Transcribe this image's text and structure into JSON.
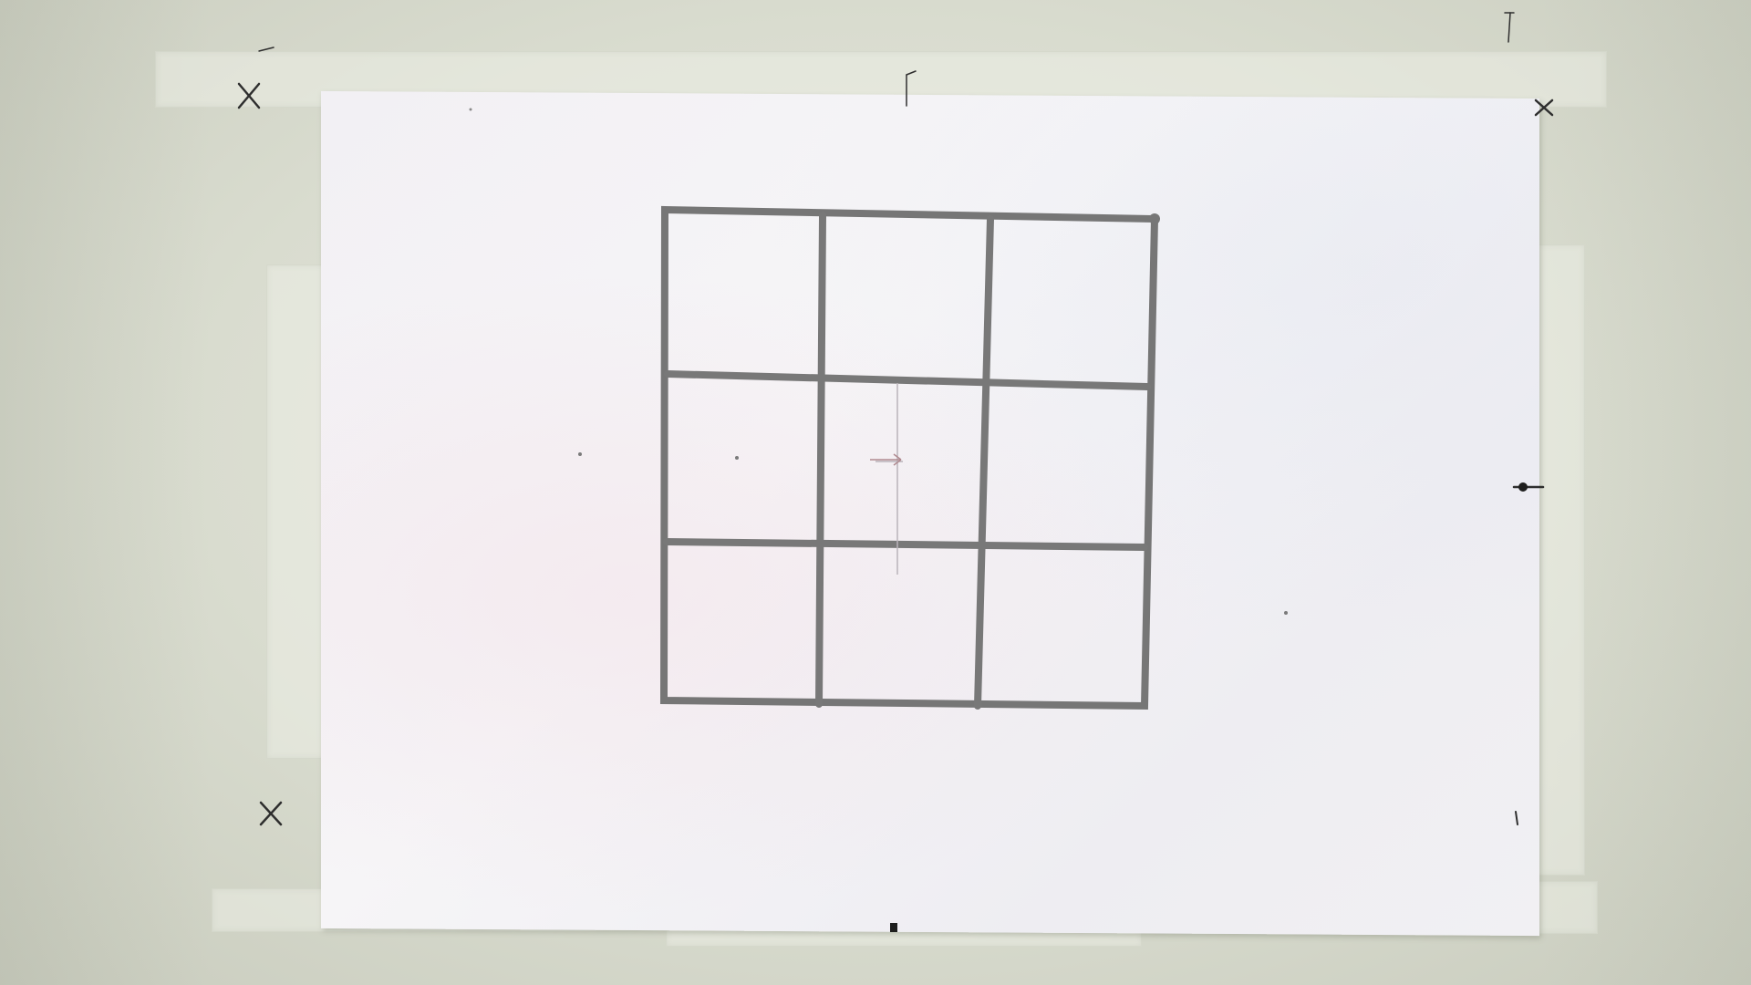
{
  "scene": {
    "wall_color": "#dcdfd3",
    "paper_color": "#f4f3f6",
    "grid_line_color": "#747474",
    "mark_color": "#2a2a2a",
    "tape_color": "#eceee6"
  },
  "grid": {
    "rows": 3,
    "columns": 3
  }
}
